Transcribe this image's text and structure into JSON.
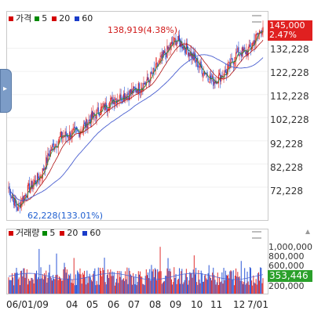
{
  "price_panel": {
    "legend_label": "가격",
    "legend_items": [
      {
        "label": "5",
        "color": "#008a00"
      },
      {
        "label": "20",
        "color": "#d40000"
      },
      {
        "label": "60",
        "color": "#1a3cc9"
      }
    ],
    "legend_swatch_color": "#d40000",
    "y_ticks": [
      "132,228",
      "122,228",
      "112,228",
      "102,228",
      "92,228",
      "82,228",
      "72,228"
    ],
    "current_price": "145,000",
    "current_change": "2.47%",
    "high_annotation": "138,919(4.38%)",
    "low_annotation": "62,228(133.01%)"
  },
  "volume_panel": {
    "legend_label": "거래량",
    "legend_items": [
      {
        "label": "5",
        "color": "#008a00"
      },
      {
        "label": "20",
        "color": "#d40000"
      },
      {
        "label": "60",
        "color": "#1a3cc9"
      }
    ],
    "legend_swatch_color": "#d40000",
    "y_ticks": [
      "1,000,000",
      "800,000",
      "600,000",
      "200,000"
    ],
    "current_volume": "353,446"
  },
  "x_labels": [
    "06/01/09",
    "04",
    "05",
    "06",
    "07",
    "08",
    "09",
    "10",
    "11",
    "12",
    "7/01"
  ],
  "colors": {
    "up": "#e03030",
    "down": "#2a55d6",
    "ma5": "#2a8a2a",
    "ma20": "#b01010",
    "ma60": "#4a5fd0",
    "price_tag": "#e02020",
    "volume_tag": "#2aa02a"
  },
  "icons": {
    "side_handle": "chevron-right-icon",
    "collapse": "collapse-icon",
    "scroll_up": "arrow-up-icon"
  },
  "chart_data": {
    "type": "candlestick",
    "x_axis_labels": [
      "06/01/09",
      "04",
      "05",
      "06",
      "07",
      "08",
      "09",
      "10",
      "11",
      "12",
      "7/01"
    ],
    "y_range": [
      58000,
      148000
    ],
    "y_ticks": [
      72228,
      82228,
      92228,
      102228,
      112228,
      122228,
      132228
    ],
    "close_path": [
      [
        0,
        72000
      ],
      [
        10,
        63000
      ],
      [
        22,
        71000
      ],
      [
        38,
        78000
      ],
      [
        48,
        88000
      ],
      [
        60,
        94000
      ],
      [
        80,
        96000
      ],
      [
        100,
        104000
      ],
      [
        120,
        110000
      ],
      [
        140,
        113000
      ],
      [
        160,
        118000
      ],
      [
        180,
        130000
      ],
      [
        192,
        136000
      ],
      [
        205,
        132000
      ],
      [
        220,
        124000
      ],
      [
        235,
        118000
      ],
      [
        250,
        122000
      ],
      [
        262,
        130000
      ],
      [
        275,
        131000
      ],
      [
        286,
        138000
      ],
      [
        292,
        142000
      ]
    ],
    "annotations": [
      {
        "text": "138,919(4.38%)",
        "value": 138919
      },
      {
        "text": "62,228(133.01%)",
        "value": 62228
      }
    ],
    "current": {
      "price": 145000,
      "change_pct": 2.47
    },
    "volume": {
      "y_ticks": [
        1000000,
        800000,
        600000,
        200000
      ],
      "current": 353446
    },
    "series": [
      {
        "name": "5",
        "color": "#008a00"
      },
      {
        "name": "20",
        "color": "#d40000"
      },
      {
        "name": "60",
        "color": "#1a3cc9"
      }
    ]
  }
}
